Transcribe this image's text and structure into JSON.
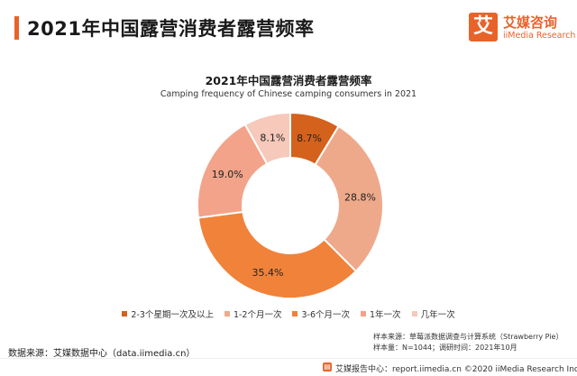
{
  "page": {
    "title": "2021年中国露营消费者露营频率",
    "logo_cn": "艾媒咨询",
    "logo_en": "iiMedia Research",
    "logo_mark": "艾"
  },
  "notes": {
    "sample_source": "样本来源：草莓派数据调查与计算系统（Strawberry Pie）",
    "sample_size": "样本量：N=1044；调研时间：2021年10月"
  },
  "data_source": "数据来源：艾媒数据中心（data.iimedia.cn）",
  "footer": {
    "text": "艾媒报告中心：report.iimedia.cn  ©2020  iiMedia Research  Inc",
    "icon": "book-icon"
  },
  "chart_data": {
    "type": "pie",
    "variant": "donut",
    "title": "2021年中国露营消费者露营频率",
    "subtitle": "Camping frequency of Chinese camping consumers in 2021",
    "categories": [
      "2-3个星期一次及以上",
      "1-2个月一次",
      "3-6个月一次",
      "1年一次",
      "几年一次"
    ],
    "values": [
      8.7,
      28.8,
      35.4,
      19.0,
      8.1
    ],
    "value_labels": [
      "8.7%",
      "28.8%",
      "35.4%",
      "19.0%",
      "8.1%"
    ],
    "unit": "%",
    "colors": [
      "#d4611c",
      "#eea98b",
      "#f0823a",
      "#f2a38a",
      "#f6c9bb"
    ],
    "start_angle_deg": 0,
    "direction": "clockwise",
    "legend_position": "bottom"
  }
}
